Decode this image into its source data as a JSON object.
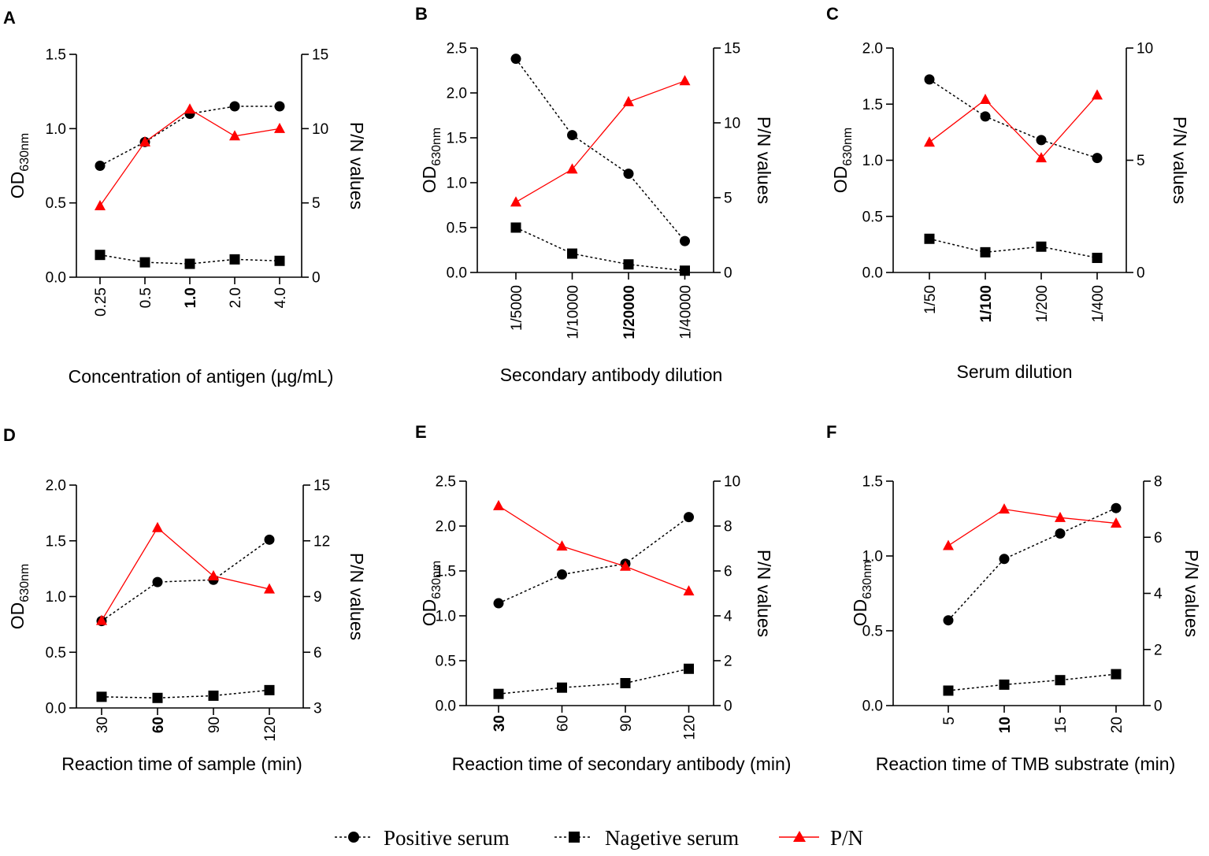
{
  "legend": {
    "positive_label": "Positive serum",
    "negative_label": "Nagetive serum",
    "pn_label": "P/N"
  },
  "colors": {
    "positive": "#000000",
    "negative": "#000000",
    "pn": "#ff0000",
    "axis": "#000000"
  },
  "chart_data": [
    {
      "panel": "A",
      "type": "line",
      "categories": [
        "0.25",
        "0.5",
        "1.0",
        "2.0",
        "4.0"
      ],
      "bold_category": 2,
      "xlabel": "Concentration of antigen (µg/mL)",
      "ylabel_main": "OD",
      "ylabel_sub": "630nm",
      "y2label": "P/N values",
      "ylim": [
        0,
        1.5
      ],
      "yticks": [
        0.0,
        0.5,
        1.0,
        1.5
      ],
      "ytick_labels": [
        "0.0",
        "0.5",
        "1.0",
        "1.5"
      ],
      "y2lim": [
        0,
        15
      ],
      "y2ticks": [
        0,
        5,
        10,
        15
      ],
      "y2tick_labels": [
        "0",
        "5",
        "10",
        "15"
      ],
      "series": [
        {
          "name": "Positive serum",
          "axis": "left",
          "values": [
            0.75,
            0.91,
            1.1,
            1.15,
            1.15
          ]
        },
        {
          "name": "Nagetive serum",
          "axis": "left",
          "values": [
            0.15,
            0.1,
            0.09,
            0.12,
            0.11
          ]
        },
        {
          "name": "P/N",
          "axis": "right",
          "values": [
            4.8,
            9.1,
            11.3,
            9.5,
            10.0
          ]
        }
      ]
    },
    {
      "panel": "B",
      "type": "line",
      "categories": [
        "1/5000",
        "1/10000",
        "1/20000",
        "1/40000"
      ],
      "bold_category": 2,
      "xlabel": "Secondary antibody dilution",
      "ylabel_main": "OD",
      "ylabel_sub": "630nm",
      "y2label": "P/N values",
      "ylim": [
        0,
        2.5
      ],
      "yticks": [
        0.0,
        0.5,
        1.0,
        1.5,
        2.0,
        2.5
      ],
      "ytick_labels": [
        "0.0",
        "0.5",
        "1.0",
        "1.5",
        "2.0",
        "2.5"
      ],
      "y2lim": [
        0,
        15
      ],
      "y2ticks": [
        0,
        5,
        10,
        15
      ],
      "y2tick_labels": [
        "0",
        "5",
        "10",
        "15"
      ],
      "series": [
        {
          "name": "Positive serum",
          "axis": "left",
          "values": [
            2.38,
            1.53,
            1.1,
            0.35
          ]
        },
        {
          "name": "Nagetive serum",
          "axis": "left",
          "values": [
            0.5,
            0.21,
            0.09,
            0.02
          ]
        },
        {
          "name": "P/N",
          "axis": "right",
          "values": [
            4.7,
            6.9,
            11.4,
            12.8
          ]
        }
      ]
    },
    {
      "panel": "C",
      "type": "line",
      "categories": [
        "1/50",
        "1/100",
        "1/200",
        "1/400"
      ],
      "bold_category": 1,
      "xlabel": "Serum dilution",
      "ylabel_main": "OD",
      "ylabel_sub": "630nm",
      "y2label": "P/N values",
      "ylim": [
        0,
        2.0
      ],
      "yticks": [
        0.0,
        0.5,
        1.0,
        1.5,
        2.0
      ],
      "ytick_labels": [
        "0.0",
        "0.5",
        "1.0",
        "1.5",
        "2.0"
      ],
      "y2lim": [
        0,
        10
      ],
      "y2ticks": [
        0,
        5,
        10
      ],
      "y2tick_labels": [
        "0",
        "5",
        "10"
      ],
      "series": [
        {
          "name": "Positive serum",
          "axis": "left",
          "values": [
            1.72,
            1.39,
            1.18,
            1.02
          ]
        },
        {
          "name": "Nagetive serum",
          "axis": "left",
          "values": [
            0.3,
            0.18,
            0.23,
            0.13
          ]
        },
        {
          "name": "P/N",
          "axis": "right",
          "values": [
            5.8,
            7.7,
            5.1,
            7.9
          ]
        }
      ]
    },
    {
      "panel": "D",
      "type": "line",
      "categories": [
        "30",
        "60",
        "90",
        "120"
      ],
      "bold_category": 1,
      "xlabel": "Reaction time of sample (min)",
      "ylabel_main": "OD",
      "ylabel_sub": "630nm",
      "y2label": "P/N values",
      "ylim": [
        0,
        2.0
      ],
      "yticks": [
        0.0,
        0.5,
        1.0,
        1.5,
        2.0
      ],
      "ytick_labels": [
        "0.0",
        "0.5",
        "1.0",
        "1.5",
        "2.0"
      ],
      "y2lim": [
        3,
        15
      ],
      "y2ticks": [
        3,
        6,
        9,
        12,
        15
      ],
      "y2tick_labels": [
        "3",
        "6",
        "9",
        "12",
        "15"
      ],
      "series": [
        {
          "name": "Positive serum",
          "axis": "left",
          "values": [
            0.78,
            1.13,
            1.15,
            1.51
          ]
        },
        {
          "name": "Nagetive serum",
          "axis": "left",
          "values": [
            0.1,
            0.09,
            0.11,
            0.16
          ]
        },
        {
          "name": "P/N",
          "axis": "right",
          "values": [
            7.7,
            12.7,
            10.1,
            9.4
          ]
        }
      ]
    },
    {
      "panel": "E",
      "type": "line",
      "categories": [
        "30",
        "60",
        "90",
        "120"
      ],
      "bold_category": 0,
      "xlabel": "Reaction time of secondary antibody (min)",
      "ylabel_main": "OD",
      "ylabel_sub": "630nm",
      "y2label": "P/N values",
      "ylim": [
        0,
        2.5
      ],
      "yticks": [
        0.0,
        0.5,
        1.0,
        1.5,
        2.0,
        2.5
      ],
      "ytick_labels": [
        "0.0",
        "0.5",
        "1.0",
        "1.5",
        "2.0",
        "2.5"
      ],
      "y2lim": [
        0,
        10
      ],
      "y2ticks": [
        0,
        2,
        4,
        6,
        8,
        10
      ],
      "y2tick_labels": [
        "0",
        "2",
        "4",
        "6",
        "8",
        "10"
      ],
      "series": [
        {
          "name": "Positive serum",
          "axis": "left",
          "values": [
            1.14,
            1.46,
            1.58,
            2.1
          ]
        },
        {
          "name": "Nagetive serum",
          "axis": "left",
          "values": [
            0.13,
            0.2,
            0.25,
            0.41
          ]
        },
        {
          "name": "P/N",
          "axis": "right",
          "values": [
            8.9,
            7.1,
            6.2,
            5.1
          ]
        }
      ]
    },
    {
      "panel": "F",
      "type": "line",
      "categories": [
        "5",
        "10",
        "15",
        "20"
      ],
      "bold_category": 1,
      "xlabel": "Reaction time of TMB substrate (min)",
      "ylabel_main": "OD",
      "ylabel_sub": "630nm",
      "y2label": "P/N values",
      "ylim": [
        0,
        1.5
      ],
      "yticks": [
        0.0,
        0.5,
        1.0,
        1.5
      ],
      "ytick_labels": [
        "0.0",
        "0.5",
        "1.0",
        "1.5"
      ],
      "y2lim": [
        0,
        8
      ],
      "y2ticks": [
        0,
        2,
        4,
        6,
        8
      ],
      "y2tick_labels": [
        "0",
        "2",
        "4",
        "6",
        "8"
      ],
      "series": [
        {
          "name": "Positive serum",
          "axis": "left",
          "values": [
            0.57,
            0.98,
            1.15,
            1.32
          ]
        },
        {
          "name": "Nagetive serum",
          "axis": "left",
          "values": [
            0.1,
            0.14,
            0.17,
            0.21
          ]
        },
        {
          "name": "P/N",
          "axis": "right",
          "values": [
            5.7,
            7.0,
            6.7,
            6.5
          ]
        }
      ]
    }
  ]
}
